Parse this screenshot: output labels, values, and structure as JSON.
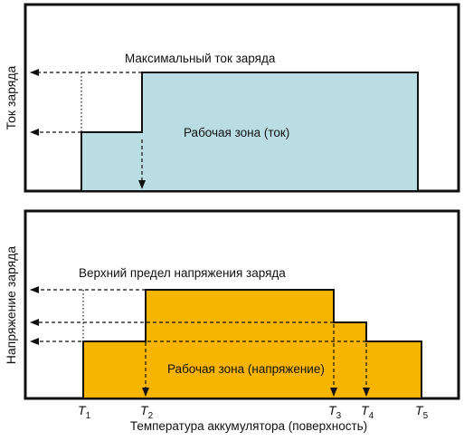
{
  "colors": {
    "frame": "#111111",
    "current_zone": "#b9dde3",
    "voltage_zone": "#f7b500",
    "arrow": "#111111"
  },
  "top_panel": {
    "ylabel": "Ток заряда",
    "annotation_max": "Максимальный ток заряда",
    "zone_label": "Рабочая зона (ток)"
  },
  "bottom_panel": {
    "ylabel": "Напряжение заряда",
    "annotation_upper": "Верхний предел напряжения заряда",
    "zone_label": "Рабочая зона (напряжение)"
  },
  "x_axis": {
    "label": "Температура аккумулятора (поверхность)",
    "ticks": [
      {
        "letter": "T",
        "sub": "1"
      },
      {
        "letter": "T",
        "sub": "2"
      },
      {
        "letter": "T",
        "sub": "3"
      },
      {
        "letter": "T",
        "sub": "4"
      },
      {
        "letter": "T",
        "sub": "5"
      }
    ]
  }
}
